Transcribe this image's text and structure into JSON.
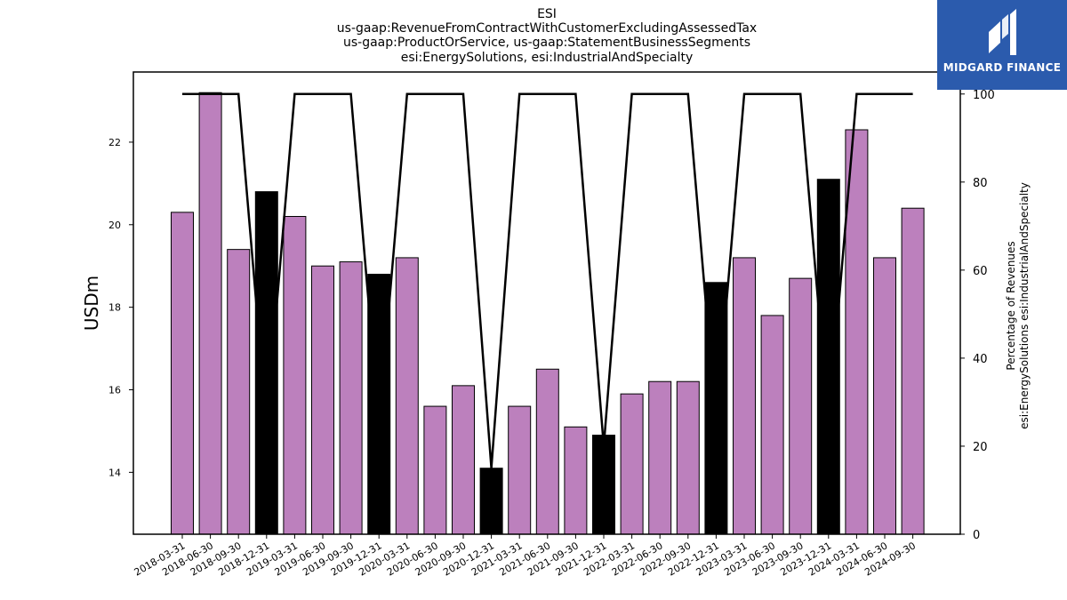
{
  "header": {
    "title_lines": [
      "ESI",
      "us-gaap:RevenueFromContractWithCustomerExcludingAssessedTax",
      "us-gaap:ProductOrService, us-gaap:StatementBusinessSegments",
      "esi:EnergySolutions, esi:IndustrialAndSpecialty"
    ]
  },
  "logo": {
    "text": "MIDGARD FINANCE",
    "icon": "midgard-logo-icon",
    "background": "#2b5bad"
  },
  "chart_data": {
    "type": "bar",
    "categories": [
      "2018-03-31",
      "2018-06-30",
      "2018-09-30",
      "2018-12-31",
      "2019-03-31",
      "2019-06-30",
      "2019-09-30",
      "2019-12-31",
      "2020-03-31",
      "2020-06-30",
      "2020-09-30",
      "2020-12-31",
      "2021-03-31",
      "2021-06-30",
      "2021-09-30",
      "2021-12-31",
      "2022-03-31",
      "2022-06-30",
      "2022-09-30",
      "2022-12-31",
      "2023-03-31",
      "2023-06-30",
      "2023-09-30",
      "2023-12-31",
      "2024-03-31",
      "2024-06-30",
      "2024-09-30"
    ],
    "series": [
      {
        "kind": "bar",
        "axis": "left",
        "values": [
          20.3,
          23.2,
          19.4,
          20.8,
          20.2,
          19.0,
          19.1,
          18.8,
          19.2,
          15.6,
          16.1,
          14.1,
          15.6,
          16.5,
          15.1,
          14.9,
          15.9,
          16.2,
          16.2,
          18.6,
          19.2,
          17.8,
          18.7,
          21.1,
          22.3,
          19.2,
          20.4
        ],
        "colors": [
          "#bc80bd",
          "#bc80bd",
          "#bc80bd",
          "#000000",
          "#bc80bd",
          "#bc80bd",
          "#bc80bd",
          "#000000",
          "#bc80bd",
          "#bc80bd",
          "#bc80bd",
          "#000000",
          "#bc80bd",
          "#bc80bd",
          "#bc80bd",
          "#000000",
          "#bc80bd",
          "#bc80bd",
          "#bc80bd",
          "#000000",
          "#bc80bd",
          "#bc80bd",
          "#bc80bd",
          "#000000",
          "#bc80bd",
          "#bc80bd",
          "#bc80bd"
        ]
      },
      {
        "kind": "line",
        "axis": "right",
        "values": [
          100,
          100,
          100,
          25,
          100,
          100,
          100,
          25,
          100,
          100,
          100,
          15,
          100,
          100,
          100,
          20,
          100,
          100,
          100,
          25,
          100,
          100,
          100,
          25,
          100,
          100,
          100
        ],
        "color": "#000000"
      }
    ],
    "ylabel": "USDm",
    "ylim": [
      12.5,
      23.7
    ],
    "yticks": [
      14,
      16,
      18,
      20,
      22
    ],
    "y2label_lines": [
      "Percentage of Revenues",
      "esi:EnergySolutions esi:IndustrialAndSpecialty"
    ],
    "y2lim": [
      0,
      105
    ],
    "y2ticks": [
      0,
      20,
      40,
      60,
      80,
      100
    ],
    "grid": false,
    "legend": "none"
  }
}
